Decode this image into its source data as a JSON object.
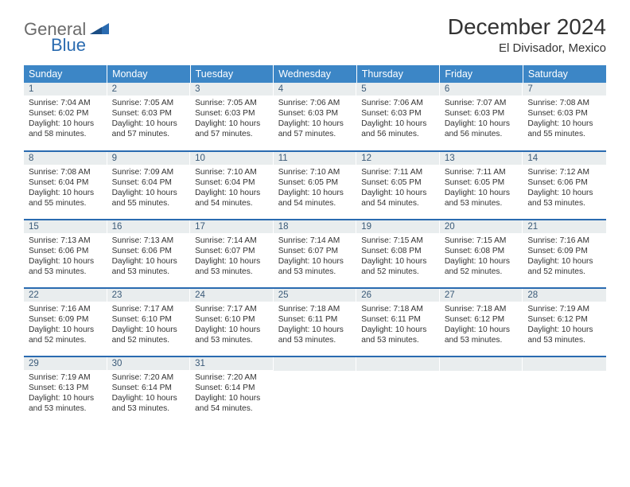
{
  "logo": {
    "word1": "General",
    "word2": "Blue"
  },
  "title": "December 2024",
  "location": "El Divisador, Mexico",
  "colors": {
    "header_bg": "#3c86c6",
    "header_text": "#ffffff",
    "daynum_bg": "#e9edee",
    "daynum_text": "#3a5a78",
    "row_divider": "#2a6bb0",
    "logo_gray": "#6b6b6b",
    "logo_blue": "#2a6bb0"
  },
  "weekdays": [
    "Sunday",
    "Monday",
    "Tuesday",
    "Wednesday",
    "Thursday",
    "Friday",
    "Saturday"
  ],
  "weeks": [
    [
      {
        "n": "1",
        "sr": "7:04 AM",
        "ss": "6:02 PM",
        "dl": "10 hours and 58 minutes."
      },
      {
        "n": "2",
        "sr": "7:05 AM",
        "ss": "6:03 PM",
        "dl": "10 hours and 57 minutes."
      },
      {
        "n": "3",
        "sr": "7:05 AM",
        "ss": "6:03 PM",
        "dl": "10 hours and 57 minutes."
      },
      {
        "n": "4",
        "sr": "7:06 AM",
        "ss": "6:03 PM",
        "dl": "10 hours and 57 minutes."
      },
      {
        "n": "5",
        "sr": "7:06 AM",
        "ss": "6:03 PM",
        "dl": "10 hours and 56 minutes."
      },
      {
        "n": "6",
        "sr": "7:07 AM",
        "ss": "6:03 PM",
        "dl": "10 hours and 56 minutes."
      },
      {
        "n": "7",
        "sr": "7:08 AM",
        "ss": "6:03 PM",
        "dl": "10 hours and 55 minutes."
      }
    ],
    [
      {
        "n": "8",
        "sr": "7:08 AM",
        "ss": "6:04 PM",
        "dl": "10 hours and 55 minutes."
      },
      {
        "n": "9",
        "sr": "7:09 AM",
        "ss": "6:04 PM",
        "dl": "10 hours and 55 minutes."
      },
      {
        "n": "10",
        "sr": "7:10 AM",
        "ss": "6:04 PM",
        "dl": "10 hours and 54 minutes."
      },
      {
        "n": "11",
        "sr": "7:10 AM",
        "ss": "6:05 PM",
        "dl": "10 hours and 54 minutes."
      },
      {
        "n": "12",
        "sr": "7:11 AM",
        "ss": "6:05 PM",
        "dl": "10 hours and 54 minutes."
      },
      {
        "n": "13",
        "sr": "7:11 AM",
        "ss": "6:05 PM",
        "dl": "10 hours and 53 minutes."
      },
      {
        "n": "14",
        "sr": "7:12 AM",
        "ss": "6:06 PM",
        "dl": "10 hours and 53 minutes."
      }
    ],
    [
      {
        "n": "15",
        "sr": "7:13 AM",
        "ss": "6:06 PM",
        "dl": "10 hours and 53 minutes."
      },
      {
        "n": "16",
        "sr": "7:13 AM",
        "ss": "6:06 PM",
        "dl": "10 hours and 53 minutes."
      },
      {
        "n": "17",
        "sr": "7:14 AM",
        "ss": "6:07 PM",
        "dl": "10 hours and 53 minutes."
      },
      {
        "n": "18",
        "sr": "7:14 AM",
        "ss": "6:07 PM",
        "dl": "10 hours and 53 minutes."
      },
      {
        "n": "19",
        "sr": "7:15 AM",
        "ss": "6:08 PM",
        "dl": "10 hours and 52 minutes."
      },
      {
        "n": "20",
        "sr": "7:15 AM",
        "ss": "6:08 PM",
        "dl": "10 hours and 52 minutes."
      },
      {
        "n": "21",
        "sr": "7:16 AM",
        "ss": "6:09 PM",
        "dl": "10 hours and 52 minutes."
      }
    ],
    [
      {
        "n": "22",
        "sr": "7:16 AM",
        "ss": "6:09 PM",
        "dl": "10 hours and 52 minutes."
      },
      {
        "n": "23",
        "sr": "7:17 AM",
        "ss": "6:10 PM",
        "dl": "10 hours and 52 minutes."
      },
      {
        "n": "24",
        "sr": "7:17 AM",
        "ss": "6:10 PM",
        "dl": "10 hours and 53 minutes."
      },
      {
        "n": "25",
        "sr": "7:18 AM",
        "ss": "6:11 PM",
        "dl": "10 hours and 53 minutes."
      },
      {
        "n": "26",
        "sr": "7:18 AM",
        "ss": "6:11 PM",
        "dl": "10 hours and 53 minutes."
      },
      {
        "n": "27",
        "sr": "7:18 AM",
        "ss": "6:12 PM",
        "dl": "10 hours and 53 minutes."
      },
      {
        "n": "28",
        "sr": "7:19 AM",
        "ss": "6:12 PM",
        "dl": "10 hours and 53 minutes."
      }
    ],
    [
      {
        "n": "29",
        "sr": "7:19 AM",
        "ss": "6:13 PM",
        "dl": "10 hours and 53 minutes."
      },
      {
        "n": "30",
        "sr": "7:20 AM",
        "ss": "6:14 PM",
        "dl": "10 hours and 53 minutes."
      },
      {
        "n": "31",
        "sr": "7:20 AM",
        "ss": "6:14 PM",
        "dl": "10 hours and 54 minutes."
      },
      null,
      null,
      null,
      null
    ]
  ],
  "labels": {
    "sunrise": "Sunrise:",
    "sunset": "Sunset:",
    "daylight": "Daylight:"
  }
}
